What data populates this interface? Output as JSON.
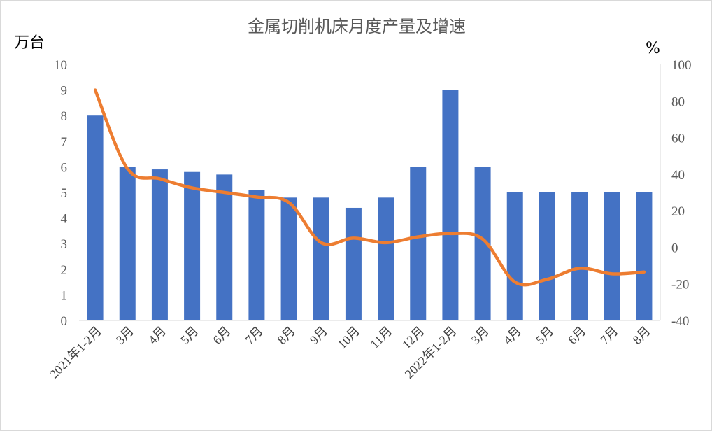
{
  "chart_data": {
    "type": "bar+line",
    "title": "金属切削机床月度产量及增速",
    "categories": [
      "2021年1-2月",
      "3月",
      "4月",
      "5月",
      "6月",
      "7月",
      "8月",
      "9月",
      "10月",
      "11月",
      "12月",
      "2022年1-2月",
      "3月",
      "4月",
      "5月",
      "6月",
      "7月",
      "8月"
    ],
    "series": [
      {
        "type": "bar",
        "axis": "left",
        "color": "#4472C4",
        "values": [
          8,
          6,
          5.9,
          5.8,
          5.7,
          5.1,
          4.8,
          4.8,
          4.4,
          4.8,
          6,
          9,
          6,
          5,
          5,
          5,
          5,
          5
        ]
      },
      {
        "type": "line",
        "axis": "right",
        "color": "#ED7D31",
        "values": [
          86,
          43,
          37.5,
          32.5,
          30,
          27.5,
          24.5,
          2.5,
          5,
          2.5,
          5.7,
          7.5,
          4.5,
          -19,
          -17.5,
          -11.5,
          -14.5,
          -13.5
        ]
      }
    ],
    "left_axis": {
      "label": "万台",
      "ylim": [
        0,
        10
      ],
      "ticks": [
        "0",
        "1",
        "2",
        "3",
        "4",
        "5",
        "6",
        "7",
        "8",
        "9",
        "10"
      ]
    },
    "right_axis": {
      "label": "%",
      "ylim": [
        -40,
        100
      ],
      "ticks": [
        "-40",
        "-20",
        "0",
        "20",
        "40",
        "60",
        "80",
        "100"
      ]
    },
    "grid": false,
    "legend": "none"
  }
}
